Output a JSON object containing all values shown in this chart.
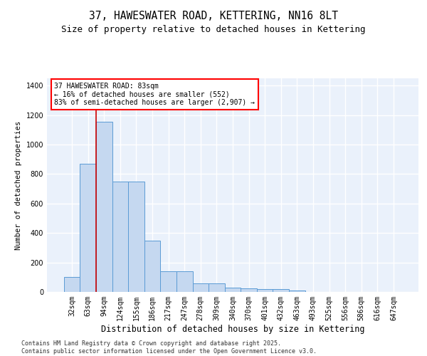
{
  "title": "37, HAWESWATER ROAD, KETTERING, NN16 8LT",
  "subtitle": "Size of property relative to detached houses in Kettering",
  "xlabel": "Distribution of detached houses by size in Kettering",
  "ylabel": "Number of detached properties",
  "categories": [
    "32sqm",
    "63sqm",
    "94sqm",
    "124sqm",
    "155sqm",
    "186sqm",
    "217sqm",
    "247sqm",
    "278sqm",
    "309sqm",
    "340sqm",
    "370sqm",
    "401sqm",
    "432sqm",
    "463sqm",
    "493sqm",
    "525sqm",
    "556sqm",
    "586sqm",
    "616sqm",
    "647sqm"
  ],
  "values": [
    100,
    870,
    1155,
    750,
    750,
    350,
    140,
    140,
    60,
    60,
    30,
    25,
    18,
    18,
    8,
    0,
    0,
    0,
    0,
    0,
    0
  ],
  "bar_color": "#c5d8f0",
  "bar_edgecolor": "#5b9bd5",
  "annotation_line1": "37 HAWESWATER ROAD: 83sqm",
  "annotation_line2": "← 16% of detached houses are smaller (552)",
  "annotation_line3": "83% of semi-detached houses are larger (2,907) →",
  "vline_x_index": 1.5,
  "ylim": [
    0,
    1450
  ],
  "yticks": [
    0,
    200,
    400,
    600,
    800,
    1000,
    1200,
    1400
  ],
  "background_color": "#eaf1fb",
  "grid_color": "#ffffff",
  "footer_line1": "Contains HM Land Registry data © Crown copyright and database right 2025.",
  "footer_line2": "Contains public sector information licensed under the Open Government Licence v3.0.",
  "title_fontsize": 10.5,
  "subtitle_fontsize": 9,
  "xlabel_fontsize": 8.5,
  "ylabel_fontsize": 7.5,
  "annotation_fontsize": 7,
  "footer_fontsize": 6,
  "tick_fontsize": 7
}
